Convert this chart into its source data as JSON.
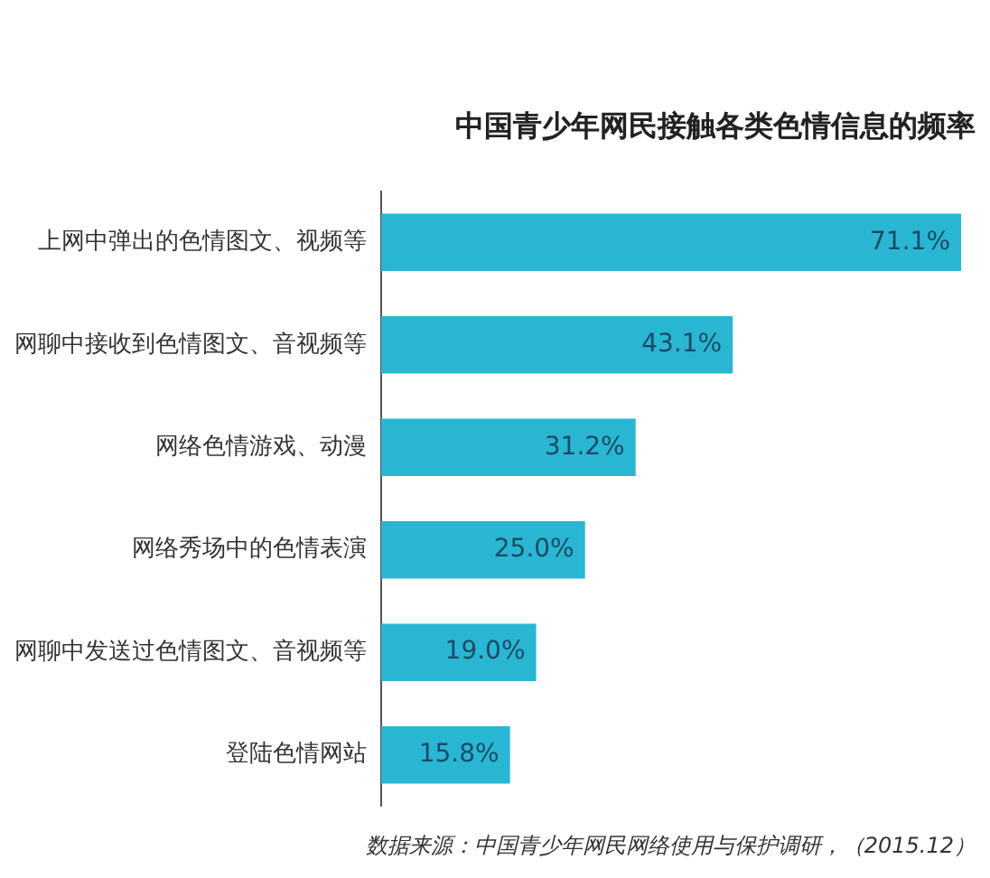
{
  "chart_data": {
    "type": "bar",
    "orientation": "horizontal",
    "title": "中国青少年网民接触各类色情信息的频率",
    "categories": [
      "上网中弹出的色情图文、视频等",
      "网聊中接收到色情图文、音视频等",
      "网络色情游戏、动漫",
      "网络秀场中的色情表演",
      "网聊中发送过色情图文、音视频等",
      "登陆色情网站"
    ],
    "values": [
      71.1,
      43.1,
      31.2,
      25.0,
      19.0,
      15.8
    ],
    "value_labels": [
      "71.1%",
      "43.1%",
      "31.2%",
      "25.0%",
      "19.0%",
      "15.8%"
    ],
    "color": "#29b6d3",
    "legend": false,
    "tick_labels": "y",
    "annotations": [
      "数据来源：中国青少年网民网络使用与保护调研，（2015.12）"
    ]
  }
}
